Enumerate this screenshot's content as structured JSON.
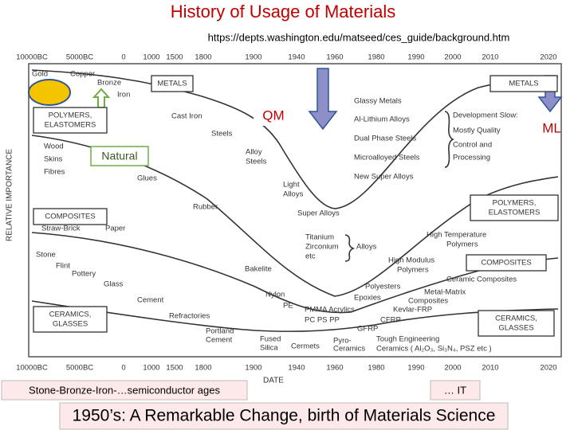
{
  "title": "History of Usage of Materials",
  "source_url": "https://depts.washington.edu/matseed/ces_guide/background.htm",
  "diagram": {
    "date_labels": [
      "10000BC",
      "5000BC",
      "0",
      "1000",
      "1500",
      "1800",
      "1900",
      "1940",
      "1960",
      "1980",
      "1990",
      "2000",
      "2010",
      "2020"
    ],
    "y_axis_title": "RELATIVE IMPORTANCE",
    "x_axis_title": "DATE",
    "class_boxes": [
      [
        "METALS"
      ],
      [
        "POLYMERS,",
        "ELASTOMERS"
      ],
      [
        "COMPOSITES"
      ],
      [
        "CERAMICS,",
        "GLASSES"
      ],
      [
        "METALS"
      ],
      [
        "POLYMERS,",
        "ELASTOMERS"
      ],
      [
        "COMPOSITES"
      ],
      [
        "CERAMICS,",
        "GLASSES"
      ]
    ],
    "labels": [
      "Gold",
      "Copper",
      "Bronze",
      "Iron",
      "Cast Iron",
      "Steels",
      "Wood",
      "Skins",
      "Fibres",
      "Glues",
      "Alloy",
      "Steels",
      "Light",
      "Alloys",
      "Rubber",
      "Super Alloys",
      "Straw-Brick",
      "Paper",
      "Titanium",
      "Zirconium",
      "etc",
      "Alloys",
      "Stone",
      "Flint",
      "Pottery",
      "Glass",
      "Bakelite",
      "Nylon",
      "PE",
      "Cement",
      "PMMA Acrylics",
      "PC PS PP",
      "Refractories",
      "Portland",
      "Cement",
      "Fused",
      "Silica",
      "Cermets",
      "Pyro-",
      "Ceramics",
      "Glassy Metals",
      "Al-Lithium Alloys",
      "Dual Phase Steels",
      "Microalloyed Steels",
      "New Super Alloys",
      "Development Slow:",
      "Mostly Quality",
      "Control and",
      "Processing",
      "High Temperature",
      "Polymers",
      "High Modulus",
      "Polymers",
      "Ceramic Composites",
      "Polyesters",
      "Epoxies",
      "Metal-Matrix",
      "Composites",
      "Kevlar-FRP",
      "CFRP",
      "GFRP",
      "Tough Engineering",
      "Ceramics ( Al₂O₃, Si₃N₄, PSZ etc )"
    ]
  },
  "annotations": {
    "qm": "QM",
    "ml": "ML",
    "natural": "Natural",
    "ages": "Stone-Bronze-Iron-…semiconductor ages",
    "it": "… IT",
    "banner": "1950’s: A Remarkable Change, birth of Materials Science"
  }
}
